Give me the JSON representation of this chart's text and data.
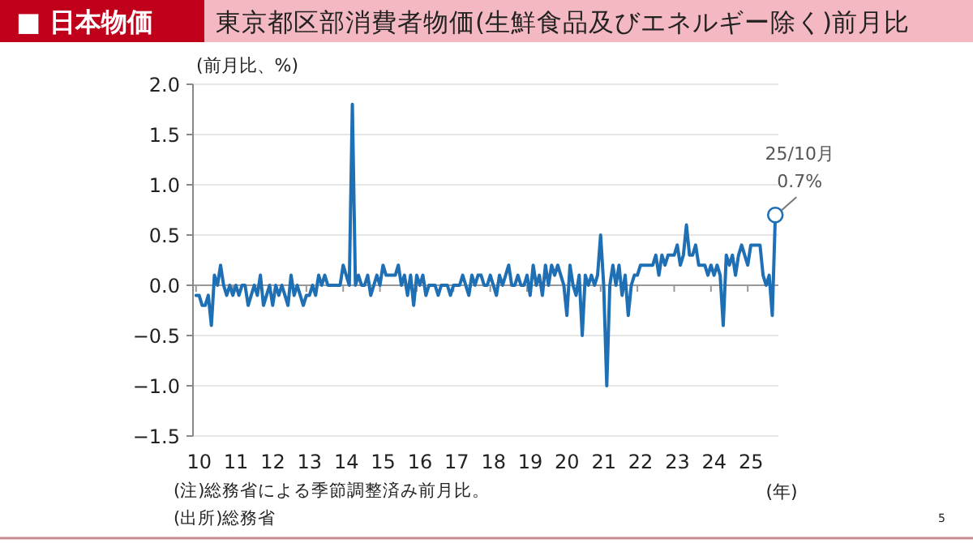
{
  "chart_data": {
    "type": "line",
    "title": "■ 日本物価",
    "subtitle": "東京都区部消費者物価(生鮮食品及びエネルギー除く)前月比",
    "ylabel": "(前月比、%)",
    "xlabel": "(年)",
    "x": [
      "2010-01",
      "2010-02",
      "2010-03",
      "2010-04",
      "2010-05",
      "2010-06",
      "2010-07",
      "2010-08",
      "2010-09",
      "2010-10",
      "2010-11",
      "2010-12",
      "2011-01",
      "2011-02",
      "2011-03",
      "2011-04",
      "2011-05",
      "2011-06",
      "2011-07",
      "2011-08",
      "2011-09",
      "2011-10",
      "2011-11",
      "2011-12",
      "2012-01",
      "2012-02",
      "2012-03",
      "2012-04",
      "2012-05",
      "2012-06",
      "2012-07",
      "2012-08",
      "2012-09",
      "2012-10",
      "2012-11",
      "2012-12",
      "2013-01",
      "2013-02",
      "2013-03",
      "2013-04",
      "2013-05",
      "2013-06",
      "2013-07",
      "2013-08",
      "2013-09",
      "2013-10",
      "2013-11",
      "2013-12",
      "2014-01",
      "2014-02",
      "2014-03",
      "2014-04",
      "2014-05",
      "2014-06",
      "2014-07",
      "2014-08",
      "2014-09",
      "2014-10",
      "2014-11",
      "2014-12",
      "2015-01",
      "2015-02",
      "2015-03",
      "2015-04",
      "2015-05",
      "2015-06",
      "2015-07",
      "2015-08",
      "2015-09",
      "2015-10",
      "2015-11",
      "2015-12",
      "2016-01",
      "2016-02",
      "2016-03",
      "2016-04",
      "2016-05",
      "2016-06",
      "2016-07",
      "2016-08",
      "2016-09",
      "2016-10",
      "2016-11",
      "2016-12",
      "2017-01",
      "2017-02",
      "2017-03",
      "2017-04",
      "2017-05",
      "2017-06",
      "2017-07",
      "2017-08",
      "2017-09",
      "2017-10",
      "2017-11",
      "2017-12",
      "2018-01",
      "2018-02",
      "2018-03",
      "2018-04",
      "2018-05",
      "2018-06",
      "2018-07",
      "2018-08",
      "2018-09",
      "2018-10",
      "2018-11",
      "2018-12",
      "2019-01",
      "2019-02",
      "2019-03",
      "2019-04",
      "2019-05",
      "2019-06",
      "2019-07",
      "2019-08",
      "2019-09",
      "2019-10",
      "2019-11",
      "2019-12",
      "2020-01",
      "2020-02",
      "2020-03",
      "2020-04",
      "2020-05",
      "2020-06",
      "2020-07",
      "2020-08",
      "2020-09",
      "2020-10",
      "2020-11",
      "2020-12",
      "2021-01",
      "2021-02",
      "2021-03",
      "2021-04",
      "2021-05",
      "2021-06",
      "2021-07",
      "2021-08",
      "2021-09",
      "2021-10",
      "2021-11",
      "2021-12",
      "2022-01",
      "2022-02",
      "2022-03",
      "2022-04",
      "2022-05",
      "2022-06",
      "2022-07",
      "2022-08",
      "2022-09",
      "2022-10",
      "2022-11",
      "2022-12",
      "2023-01",
      "2023-02",
      "2023-03",
      "2023-04",
      "2023-05",
      "2023-06",
      "2023-07",
      "2023-08",
      "2023-09",
      "2023-10",
      "2023-11",
      "2023-12",
      "2024-01",
      "2024-02",
      "2024-03",
      "2024-04",
      "2024-05",
      "2024-06",
      "2024-07",
      "2024-08",
      "2024-09",
      "2024-10",
      "2024-11",
      "2024-12",
      "2025-01",
      "2025-02",
      "2025-03",
      "2025-04",
      "2025-05",
      "2025-06",
      "2025-07",
      "2025-08",
      "2025-09",
      "2025-10"
    ],
    "series": [
      {
        "color": "#1f6fb4",
        "values": [
          -0.1,
          -0.1,
          -0.2,
          -0.2,
          -0.1,
          -0.4,
          0.1,
          0.0,
          0.2,
          0.0,
          -0.1,
          0.0,
          -0.1,
          0.0,
          -0.1,
          0.0,
          0.0,
          -0.2,
          -0.1,
          0.0,
          -0.1,
          0.1,
          -0.2,
          -0.1,
          0.0,
          -0.2,
          0.0,
          -0.1,
          0.0,
          -0.1,
          -0.2,
          0.1,
          -0.1,
          0.0,
          -0.1,
          -0.2,
          -0.1,
          -0.1,
          0.0,
          -0.1,
          0.1,
          0.0,
          0.1,
          0.0,
          0.0,
          0.0,
          0.0,
          0.0,
          0.2,
          0.1,
          0.0,
          1.8,
          0.0,
          0.1,
          0.0,
          0.0,
          0.1,
          -0.1,
          0.0,
          0.1,
          0.0,
          0.2,
          0.1,
          0.1,
          0.1,
          0.1,
          0.2,
          0.0,
          0.1,
          -0.1,
          0.1,
          -0.2,
          0.1,
          0.0,
          0.1,
          -0.1,
          0.0,
          0.0,
          0.0,
          -0.1,
          0.0,
          0.0,
          0.0,
          -0.1,
          0.0,
          0.0,
          0.0,
          0.1,
          0.0,
          -0.1,
          0.1,
          0.0,
          0.1,
          0.1,
          0.0,
          0.0,
          0.1,
          0.0,
          -0.1,
          0.1,
          0.0,
          0.1,
          0.2,
          0.0,
          0.0,
          0.1,
          0.0,
          0.0,
          0.1,
          -0.1,
          0.2,
          0.0,
          0.1,
          -0.1,
          0.2,
          0.0,
          0.2,
          0.1,
          0.2,
          0.1,
          0.0,
          -0.3,
          0.2,
          0.0,
          -0.1,
          0.1,
          -0.5,
          0.1,
          0.0,
          0.1,
          0.0,
          0.1,
          0.5,
          0.0,
          -1.0,
          0.0,
          0.2,
          0.0,
          0.2,
          -0.1,
          0.1,
          -0.3,
          0.0,
          0.1,
          0.1,
          0.2,
          0.2,
          0.2,
          0.2,
          0.2,
          0.3,
          0.1,
          0.3,
          0.2,
          0.3,
          0.3,
          0.3,
          0.4,
          0.2,
          0.3,
          0.6,
          0.3,
          0.3,
          0.4,
          0.2,
          0.2,
          0.2,
          0.1,
          0.2,
          0.1,
          0.2,
          0.1,
          -0.4,
          0.3,
          0.2,
          0.3,
          0.1,
          0.3,
          0.4,
          0.3,
          0.2,
          0.4,
          0.4,
          0.4,
          0.4,
          0.1,
          0.0,
          0.1,
          -0.3,
          0.7
        ]
      }
    ],
    "xlim": [
      "2009-12",
      "2025-11"
    ],
    "xticks": [
      {
        "value": "2010-01",
        "label": "10"
      },
      {
        "value": "2011-01",
        "label": "11"
      },
      {
        "value": "2012-01",
        "label": "12"
      },
      {
        "value": "2013-01",
        "label": "13"
      },
      {
        "value": "2014-01",
        "label": "14"
      },
      {
        "value": "2015-01",
        "label": "15"
      },
      {
        "value": "2016-01",
        "label": "16"
      },
      {
        "value": "2017-01",
        "label": "17"
      },
      {
        "value": "2018-01",
        "label": "18"
      },
      {
        "value": "2019-01",
        "label": "19"
      },
      {
        "value": "2020-01",
        "label": "20"
      },
      {
        "value": "2021-01",
        "label": "21"
      },
      {
        "value": "2022-01",
        "label": "22"
      },
      {
        "value": "2023-01",
        "label": "23"
      },
      {
        "value": "2024-01",
        "label": "24"
      },
      {
        "value": "2025-01",
        "label": "25"
      }
    ],
    "ylim": [
      -1.5,
      2.0
    ],
    "yticks": [
      {
        "value": 2.0,
        "label": "2.0"
      },
      {
        "value": 1.5,
        "label": "1.5"
      },
      {
        "value": 1.0,
        "label": "1.0"
      },
      {
        "value": 0.5,
        "label": "0.5"
      },
      {
        "value": 0.0,
        "label": "0.0"
      },
      {
        "value": -0.5,
        "label": "−0.5"
      },
      {
        "value": -1.0,
        "label": "−1.0"
      },
      {
        "value": -1.5,
        "label": "−1.5"
      }
    ],
    "grid": "y",
    "line_style": "solid",
    "annotations": [
      {
        "text": "25/10月\n0.7%",
        "x": "2025-10",
        "y": 0.7
      },
      "(注)総務省による季節調整済み前月比。",
      "(出所)総務省",
      "5"
    ]
  }
}
